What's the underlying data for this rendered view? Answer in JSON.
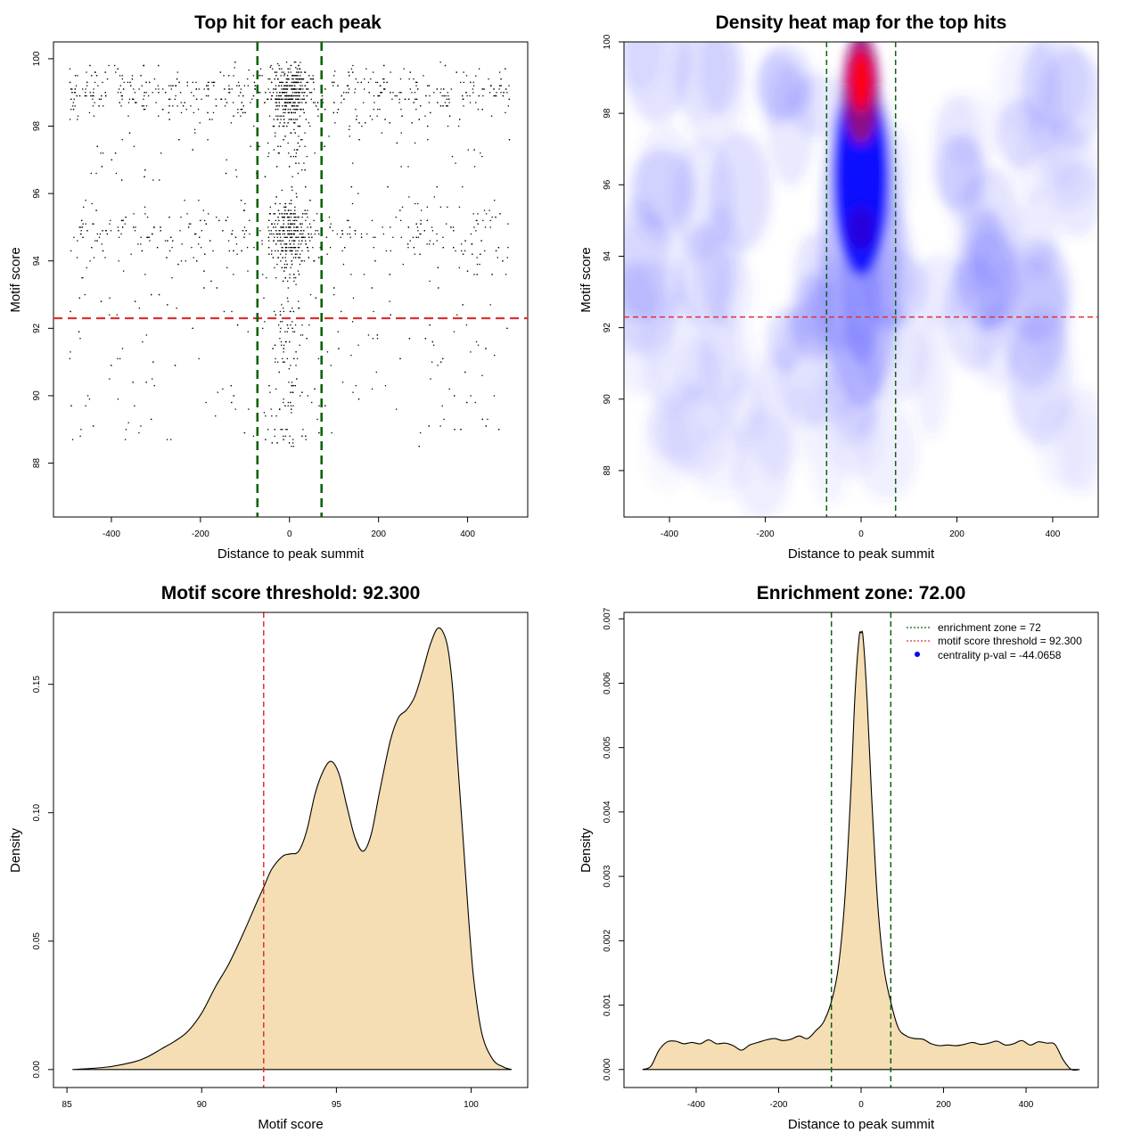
{
  "colors": {
    "green_line": "#0a640a",
    "red_line": "#e03030",
    "density_fill": "#f5deb3",
    "frame": "#000000",
    "heat_low": "#ffffff",
    "heat_mid": "#0000ff",
    "heat_high": "#ff0000"
  },
  "chart_data": [
    {
      "type": "scatter",
      "title": "Top hit for each peak",
      "xlabel": "Distance to peak summit",
      "ylabel": "Motif score",
      "xlim": [
        -530,
        535
      ],
      "ylim": [
        86.4,
        100.5
      ],
      "xticks": [
        -400,
        -200,
        0,
        200,
        400
      ],
      "xtick_labels": [
        "-400",
        "-200",
        "0",
        "200",
        "400"
      ],
      "yticks": [
        88,
        90,
        92,
        94,
        96,
        98,
        100
      ],
      "ytick_labels": [
        "88",
        "90",
        "92",
        "94",
        "96",
        "98",
        "100"
      ],
      "vlines": [
        -72,
        72
      ],
      "hline": 92.3,
      "n_points": 2400,
      "center_fraction": 0.4,
      "score_peaks": [
        94.8,
        99.0
      ]
    },
    {
      "type": "heatmap",
      "title": "Density heat map for the top hits",
      "xlabel": "Distance to peak summit",
      "ylabel": "Motif score",
      "xlim": [
        -495,
        495
      ],
      "ylim": [
        86.7,
        100.0
      ],
      "xticks": [
        -400,
        -200,
        0,
        200,
        400
      ],
      "xtick_labels": [
        "-400",
        "-200",
        "0",
        "200",
        "400"
      ],
      "yticks": [
        88,
        90,
        92,
        94,
        96,
        98,
        100
      ],
      "ytick_labels": [
        "88",
        "90",
        "92",
        "94",
        "96",
        "98",
        "100"
      ],
      "vlines": [
        -72,
        72
      ],
      "hline": 92.3,
      "hotspots": [
        {
          "x": 0,
          "y": 98.9,
          "intensity": 1.0
        },
        {
          "x": 0,
          "y": 94.8,
          "intensity": 0.6
        }
      ]
    },
    {
      "type": "area",
      "title": "Motif score threshold: 92.300",
      "xlabel": "Motif score",
      "ylabel": "Density",
      "xlim": [
        84.5,
        102.1
      ],
      "ylim": [
        -0.007,
        0.178
      ],
      "xticks": [
        85,
        90,
        95,
        100
      ],
      "xtick_labels": [
        "85",
        "90",
        "95",
        "100"
      ],
      "yticks": [
        0.0,
        0.05,
        0.1,
        0.15
      ],
      "ytick_labels": [
        "0.00",
        "0.05",
        "0.10",
        "0.15"
      ],
      "vline": 92.3,
      "x": [
        85.2,
        86.5,
        87.5,
        88.0,
        88.5,
        89.0,
        89.5,
        90.0,
        90.5,
        91.0,
        91.5,
        92.0,
        92.3,
        92.6,
        93.0,
        93.3,
        93.6,
        93.9,
        94.2,
        94.5,
        94.8,
        95.1,
        95.4,
        95.7,
        96.0,
        96.3,
        96.6,
        97.0,
        97.3,
        97.6,
        97.9,
        98.2,
        98.5,
        98.8,
        99.1,
        99.3,
        99.5,
        99.7,
        99.9,
        100.1,
        100.4,
        100.8,
        101.2,
        101.5
      ],
      "y": [
        0.0,
        0.001,
        0.003,
        0.005,
        0.008,
        0.011,
        0.015,
        0.022,
        0.032,
        0.041,
        0.052,
        0.064,
        0.071,
        0.078,
        0.083,
        0.084,
        0.085,
        0.093,
        0.107,
        0.116,
        0.12,
        0.115,
        0.102,
        0.09,
        0.085,
        0.092,
        0.108,
        0.128,
        0.137,
        0.14,
        0.145,
        0.155,
        0.166,
        0.172,
        0.166,
        0.15,
        0.12,
        0.09,
        0.06,
        0.035,
        0.014,
        0.004,
        0.001,
        0.0
      ]
    },
    {
      "type": "area",
      "title": "Enrichment zone: 72.00",
      "xlabel": "Distance to peak summit",
      "ylabel": "Density",
      "xlim": [
        -575,
        575
      ],
      "ylim": [
        -0.00028,
        0.0071
      ],
      "xticks": [
        -400,
        -200,
        0,
        200,
        400
      ],
      "xtick_labels": [
        "-400",
        "-200",
        "0",
        "200",
        "400"
      ],
      "yticks": [
        0.0,
        0.001,
        0.002,
        0.003,
        0.004,
        0.005,
        0.006,
        0.007
      ],
      "ytick_labels": [
        "0.000",
        "0.001",
        "0.002",
        "0.003",
        "0.004",
        "0.005",
        "0.006",
        "0.007"
      ],
      "vlines": [
        -72,
        72
      ],
      "x": [
        -530,
        -510,
        -490,
        -470,
        -450,
        -430,
        -410,
        -390,
        -370,
        -350,
        -330,
        -310,
        -290,
        -270,
        -250,
        -230,
        -210,
        -190,
        -170,
        -150,
        -130,
        -110,
        -90,
        -70,
        -55,
        -40,
        -25,
        -15,
        -5,
        0,
        5,
        15,
        25,
        40,
        55,
        70,
        90,
        110,
        130,
        150,
        170,
        190,
        210,
        230,
        250,
        270,
        290,
        310,
        330,
        350,
        370,
        390,
        410,
        430,
        450,
        470,
        490,
        510,
        530
      ],
      "y": [
        0.0,
        5e-05,
        0.0003,
        0.00043,
        0.00044,
        0.0004,
        0.00042,
        0.0004,
        0.00046,
        0.0004,
        0.00041,
        0.00037,
        0.0003,
        0.00038,
        0.00042,
        0.00046,
        0.00048,
        0.00045,
        0.00047,
        0.00052,
        0.00048,
        0.0006,
        0.00075,
        0.0011,
        0.0016,
        0.0026,
        0.0043,
        0.0058,
        0.0067,
        0.00678,
        0.0067,
        0.0057,
        0.0043,
        0.0026,
        0.0016,
        0.0011,
        0.00065,
        0.00052,
        0.00048,
        0.00047,
        0.0004,
        0.00037,
        0.00038,
        0.00037,
        0.00039,
        0.00042,
        0.00039,
        0.00041,
        0.00044,
        0.00038,
        0.0004,
        0.00045,
        0.00038,
        0.00043,
        0.00041,
        0.00039,
        0.00015,
        0.0,
        0.0
      ],
      "legend": [
        {
          "label": "enrichment zone = 72",
          "style": "dotted",
          "color": "#0a640a"
        },
        {
          "label": "motif score threshold = 92.300",
          "style": "dotted",
          "color": "#e03030"
        },
        {
          "label": "centrality p-val = -44.0658",
          "style": "point",
          "color": "#0000ff"
        }
      ],
      "legend_position": "top-right"
    }
  ]
}
